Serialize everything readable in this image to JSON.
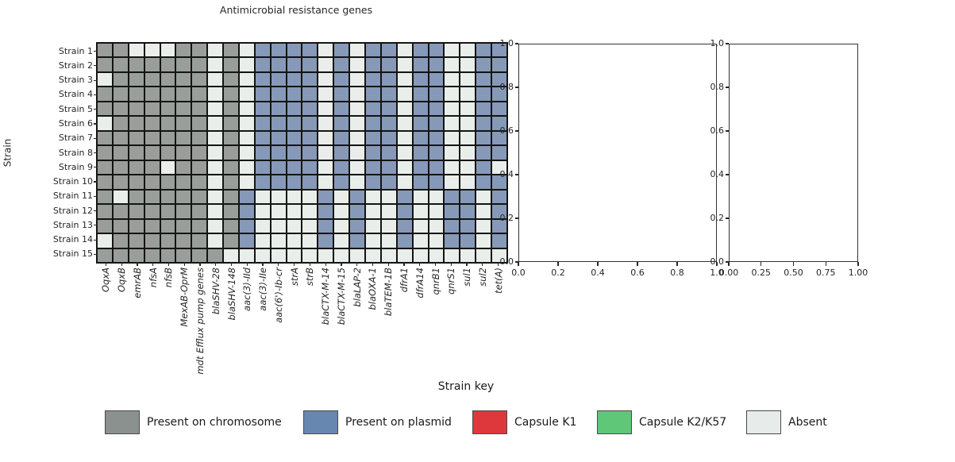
{
  "chart_data": {
    "type": "heatmap",
    "title": "Antimicrobial resistance genes",
    "ylabel": "Strain",
    "rows": [
      "Strain 1",
      "Strain 2",
      "Strain 3",
      "Strain 4",
      "Strain 5",
      "Strain 6",
      "Strain 7",
      "Strain 8",
      "Strain 9",
      "Strain 10",
      "Strain 11",
      "Strain 12",
      "Strain 13",
      "Strain 14",
      "Strain 15"
    ],
    "columns": [
      "OqxA",
      "OqxB",
      "emrAB",
      "nfsA",
      "nfsB",
      "MexAB-OprM",
      "mdt Efflux pump genes",
      "blaSHV-28",
      "blaSHV-148",
      "aac(3)-IId",
      "aac(3)-IIe",
      "aac(6')-Ib-cr",
      "strA",
      "strB",
      "blaCTX-M-14",
      "blaCTX-M-15",
      "blaLAP-2",
      "blaOXA-1",
      "blaTEM-1B",
      "dfrA1",
      "dfrA14",
      "qnrB1",
      "qnrS1",
      "sul1",
      "sul2",
      "tet(A)"
    ],
    "state_meaning": {
      "C": "Present on chromosome",
      "P": "Present on plasmid",
      "K1": "Capsule K1",
      "K2": "Capsule K2/K57",
      "A": "Absent"
    },
    "cell_colors": {
      "C": "#9a9e9b",
      "P": "#8699b8",
      "K1": "#de383c",
      "K2": "#5ec878",
      "A": "#e9eeeb"
    },
    "matrix": [
      [
        "C",
        "C",
        "A",
        "A",
        "A",
        "C",
        "C",
        "A",
        "C",
        "A",
        "P",
        "P",
        "P",
        "P",
        "A",
        "P",
        "A",
        "P",
        "P",
        "A",
        "P",
        "P",
        "A",
        "A",
        "P",
        "P"
      ],
      [
        "C",
        "C",
        "C",
        "C",
        "C",
        "C",
        "C",
        "A",
        "C",
        "A",
        "P",
        "P",
        "P",
        "P",
        "A",
        "P",
        "A",
        "P",
        "P",
        "A",
        "P",
        "P",
        "A",
        "A",
        "P",
        "P"
      ],
      [
        "A",
        "C",
        "C",
        "C",
        "C",
        "C",
        "C",
        "A",
        "C",
        "A",
        "P",
        "P",
        "P",
        "P",
        "A",
        "P",
        "A",
        "P",
        "P",
        "A",
        "P",
        "P",
        "A",
        "A",
        "P",
        "P"
      ],
      [
        "C",
        "C",
        "C",
        "C",
        "C",
        "C",
        "C",
        "A",
        "C",
        "A",
        "P",
        "P",
        "P",
        "P",
        "A",
        "P",
        "A",
        "P",
        "P",
        "A",
        "P",
        "P",
        "A",
        "A",
        "P",
        "P"
      ],
      [
        "C",
        "C",
        "C",
        "C",
        "C",
        "C",
        "C",
        "A",
        "C",
        "A",
        "P",
        "P",
        "P",
        "P",
        "A",
        "P",
        "A",
        "P",
        "P",
        "A",
        "P",
        "P",
        "A",
        "A",
        "P",
        "P"
      ],
      [
        "A",
        "C",
        "C",
        "C",
        "C",
        "C",
        "C",
        "A",
        "C",
        "A",
        "P",
        "P",
        "P",
        "P",
        "A",
        "P",
        "A",
        "P",
        "P",
        "A",
        "P",
        "P",
        "A",
        "A",
        "P",
        "P"
      ],
      [
        "C",
        "C",
        "C",
        "C",
        "C",
        "C",
        "C",
        "A",
        "C",
        "A",
        "P",
        "P",
        "P",
        "P",
        "A",
        "P",
        "A",
        "P",
        "P",
        "A",
        "P",
        "P",
        "A",
        "A",
        "P",
        "P"
      ],
      [
        "C",
        "C",
        "C",
        "C",
        "C",
        "C",
        "C",
        "A",
        "C",
        "A",
        "P",
        "P",
        "P",
        "P",
        "A",
        "P",
        "A",
        "P",
        "P",
        "A",
        "P",
        "P",
        "A",
        "A",
        "P",
        "P"
      ],
      [
        "C",
        "C",
        "C",
        "C",
        "A",
        "C",
        "C",
        "A",
        "C",
        "A",
        "P",
        "P",
        "P",
        "P",
        "A",
        "P",
        "A",
        "P",
        "P",
        "A",
        "P",
        "P",
        "A",
        "A",
        "P",
        "A"
      ],
      [
        "C",
        "C",
        "C",
        "C",
        "C",
        "C",
        "C",
        "A",
        "C",
        "A",
        "P",
        "P",
        "P",
        "P",
        "A",
        "P",
        "A",
        "P",
        "P",
        "A",
        "P",
        "P",
        "A",
        "A",
        "P",
        "P"
      ],
      [
        "C",
        "A",
        "C",
        "C",
        "C",
        "C",
        "C",
        "A",
        "C",
        "P",
        "A",
        "A",
        "A",
        "A",
        "P",
        "A",
        "P",
        "A",
        "A",
        "P",
        "A",
        "A",
        "P",
        "P",
        "A",
        "P"
      ],
      [
        "C",
        "C",
        "C",
        "C",
        "C",
        "C",
        "C",
        "A",
        "C",
        "P",
        "A",
        "A",
        "A",
        "A",
        "P",
        "A",
        "P",
        "A",
        "A",
        "P",
        "A",
        "A",
        "P",
        "P",
        "A",
        "P"
      ],
      [
        "C",
        "C",
        "C",
        "C",
        "C",
        "C",
        "C",
        "A",
        "C",
        "P",
        "A",
        "A",
        "A",
        "A",
        "P",
        "A",
        "P",
        "A",
        "A",
        "P",
        "A",
        "A",
        "P",
        "P",
        "A",
        "P"
      ],
      [
        "A",
        "C",
        "C",
        "C",
        "C",
        "C",
        "C",
        "A",
        "C",
        "P",
        "A",
        "A",
        "A",
        "A",
        "P",
        "A",
        "P",
        "A",
        "A",
        "P",
        "A",
        "A",
        "P",
        "P",
        "A",
        "P"
      ],
      [
        "C",
        "C",
        "C",
        "C",
        "C",
        "C",
        "C",
        "C",
        "A",
        "A",
        "A",
        "A",
        "A",
        "A",
        "A",
        "A",
        "A",
        "A",
        "A",
        "A",
        "A",
        "A",
        "A",
        "A",
        "A",
        "A"
      ]
    ]
  },
  "legend": {
    "title": "Strain key",
    "items": [
      {
        "label": "Present on chromosome",
        "color": "#8a918e"
      },
      {
        "label": "Present on plasmid",
        "color": "#6787b0"
      },
      {
        "label": "Capsule K1",
        "color": "#de383c"
      },
      {
        "label": "Capsule K2/K57",
        "color": "#5ec878"
      },
      {
        "label": "Absent",
        "color": "#e7ecea"
      }
    ]
  },
  "empty_axes": [
    {
      "x_ticks": [
        "0.0",
        "0.2",
        "0.4",
        "0.6",
        "0.8",
        "1.0"
      ],
      "y_ticks": [
        "0.0",
        "0.2",
        "0.4",
        "0.6",
        "0.8",
        "1.0"
      ]
    },
    {
      "x_ticks": [
        "0.00",
        "0.25",
        "0.50",
        "0.75",
        "1.00"
      ],
      "y_ticks": [
        "0.0",
        "0.2",
        "0.4",
        "0.6",
        "0.8",
        "1.0"
      ]
    }
  ]
}
